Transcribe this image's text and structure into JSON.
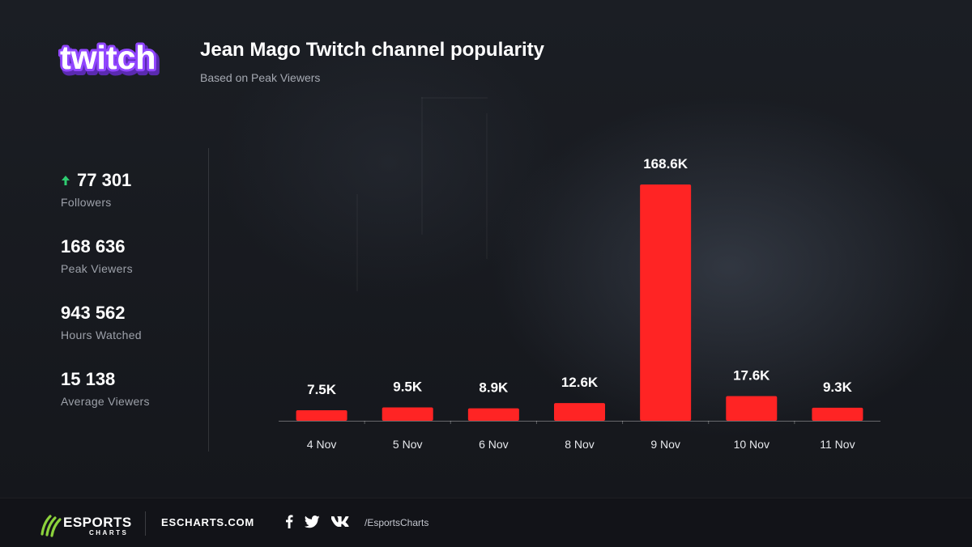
{
  "header": {
    "logo_text": "twitch",
    "title": "Jean Mago Twitch channel popularity",
    "subtitle": "Based on Peak Viewers"
  },
  "stats": [
    {
      "value": "77 301",
      "label": "Followers",
      "icon": "arrow-up-icon"
    },
    {
      "value": "168 636",
      "label": "Peak Viewers"
    },
    {
      "value": "943 562",
      "label": "Hours Watched"
    },
    {
      "value": "15 138",
      "label": "Average Viewers"
    }
  ],
  "colors": {
    "bar": "#ff2424",
    "accent_up": "#2ecc71",
    "twitch_purple": "#9146ff",
    "esports_green": "#8cd23c"
  },
  "chart_data": {
    "type": "bar",
    "categories": [
      "4 Nov",
      "5 Nov",
      "6 Nov",
      "8 Nov",
      "9 Nov",
      "10 Nov",
      "11 Nov"
    ],
    "values": [
      7.5,
      9.5,
      8.9,
      12.6,
      168.6,
      17.6,
      9.3
    ],
    "value_labels": [
      "7.5K",
      "9.5K",
      "8.9K",
      "12.6K",
      "168.6K",
      "17.6K",
      "9.3K"
    ],
    "unit": "K",
    "ylim": [
      0,
      168.6
    ],
    "grid": false,
    "legend": "none"
  },
  "footer": {
    "brand_main": "ESPORTS",
    "brand_sub": "CHARTS",
    "domain": "ESCHARTS.COM",
    "social_icons": [
      "facebook-icon",
      "twitter-icon",
      "vk-icon"
    ],
    "handle": "/EsportsCharts"
  }
}
